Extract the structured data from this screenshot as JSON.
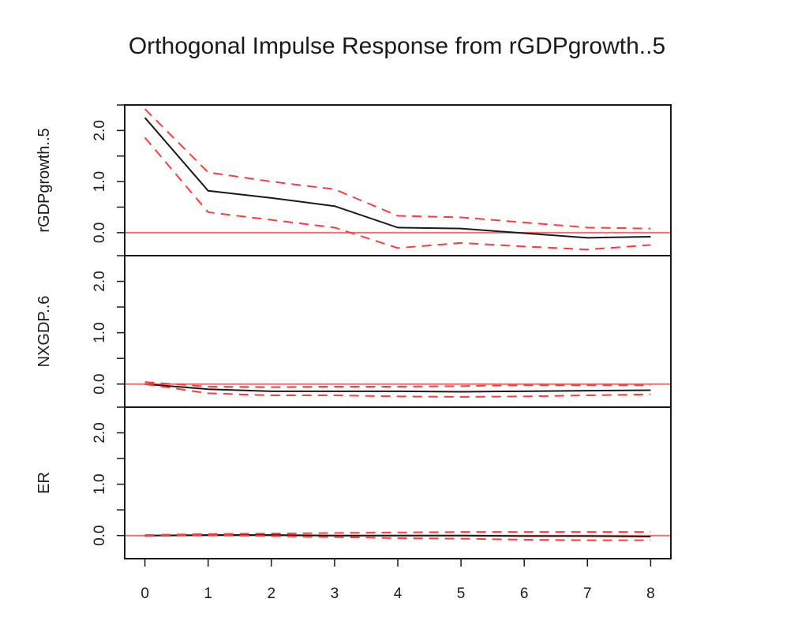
{
  "chart_data": {
    "type": "line",
    "title": "Orthogonal Impulse Response from rGDPgrowth..5",
    "x": [
      0,
      1,
      2,
      3,
      4,
      5,
      6,
      7,
      8
    ],
    "x_ticks": [
      "0",
      "1",
      "2",
      "3",
      "4",
      "5",
      "6",
      "7",
      "8"
    ],
    "y_ticks": [
      "0.0",
      "1.0",
      "2.0"
    ],
    "ylim": [
      -0.45,
      2.5
    ],
    "xlim": [
      -0.32,
      8.32
    ],
    "zero_line_color": "#ff6b6b",
    "lower_panel_y_minor_tick": -0.5,
    "line_color": "#1a1a1a",
    "band_color": "#ff3b3b",
    "panels": [
      {
        "ylabel": "rGDPgrowth..5",
        "series": [
          {
            "values": [
              2.25,
              0.82,
              0.68,
              0.52,
              0.1,
              0.08,
              -0.01,
              -0.1,
              -0.08
            ]
          },
          {
            "values": [
              2.42,
              1.18,
              1.0,
              0.85,
              0.33,
              0.3,
              0.2,
              0.1,
              0.08
            ]
          },
          {
            "values": [
              1.86,
              0.4,
              0.25,
              0.1,
              -0.3,
              -0.2,
              -0.27,
              -0.33,
              -0.24
            ]
          }
        ]
      },
      {
        "ylabel": "NXGDP..6",
        "series": [
          {
            "values": [
              0.0,
              -0.1,
              -0.14,
              -0.14,
              -0.14,
              -0.15,
              -0.14,
              -0.13,
              -0.12
            ]
          },
          {
            "values": [
              0.04,
              -0.05,
              -0.06,
              -0.05,
              -0.05,
              -0.04,
              -0.02,
              -0.02,
              -0.02
            ]
          },
          {
            "values": [
              0.0,
              -0.18,
              -0.22,
              -0.22,
              -0.24,
              -0.25,
              -0.24,
              -0.22,
              -0.2
            ]
          }
        ]
      },
      {
        "ylabel": "ER",
        "series": [
          {
            "values": [
              0.0,
              0.01,
              0.01,
              0.0,
              0.0,
              0.0,
              -0.01,
              -0.01,
              -0.02
            ]
          },
          {
            "values": [
              0.01,
              0.03,
              0.04,
              0.05,
              0.06,
              0.07,
              0.07,
              0.07,
              0.07
            ]
          },
          {
            "values": [
              -0.01,
              0.01,
              -0.01,
              -0.03,
              -0.05,
              -0.06,
              -0.08,
              -0.09,
              -0.09
            ]
          }
        ]
      }
    ]
  }
}
